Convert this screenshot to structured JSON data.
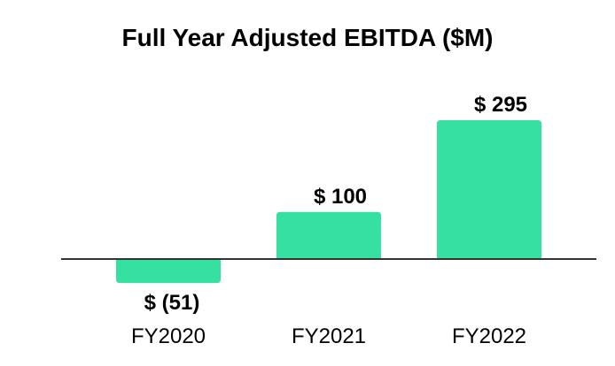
{
  "chart_data": {
    "type": "bar",
    "title": "Full Year Adjusted EBITDA ($M)",
    "xlabel": "",
    "ylabel": "",
    "categories": [
      "FY2020",
      "FY2021",
      "FY2022"
    ],
    "values": [
      -51,
      100,
      295
    ],
    "value_labels": [
      "$ (51)",
      "$ 100",
      "$ 295"
    ],
    "ylim": [
      -60,
      300
    ],
    "grid": false,
    "legend": "none",
    "bar_color": "#35E0A1",
    "axis_color": "#333333"
  }
}
